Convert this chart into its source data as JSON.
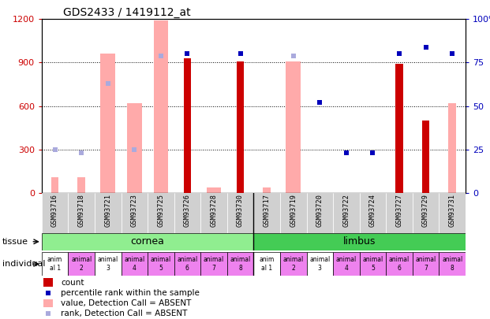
{
  "title": "GDS2433 / 1419112_at",
  "samples": [
    "GSM93716",
    "GSM93718",
    "GSM93721",
    "GSM93723",
    "GSM93725",
    "GSM93726",
    "GSM93728",
    "GSM93730",
    "GSM93717",
    "GSM93719",
    "GSM93720",
    "GSM93722",
    "GSM93724",
    "GSM93727",
    "GSM93729",
    "GSM93731"
  ],
  "count_values": [
    null,
    null,
    null,
    null,
    null,
    930,
    null,
    910,
    null,
    null,
    null,
    null,
    null,
    890,
    500,
    null
  ],
  "count_absent": [
    110,
    110,
    null,
    null,
    null,
    null,
    40,
    null,
    40,
    null,
    null,
    null,
    null,
    null,
    null,
    620
  ],
  "rank_present": [
    null,
    null,
    null,
    null,
    null,
    80,
    null,
    80,
    null,
    null,
    null,
    null,
    null,
    80,
    null,
    null
  ],
  "rank_absent": [
    25,
    23,
    null,
    null,
    null,
    null,
    null,
    null,
    null,
    null,
    null,
    null,
    null,
    null,
    null,
    null
  ],
  "value_absent": [
    null,
    null,
    960,
    620,
    1190,
    null,
    40,
    null,
    null,
    910,
    null,
    null,
    null,
    null,
    null,
    null
  ],
  "rank_absent_scatter": [
    null,
    null,
    63,
    25,
    79,
    null,
    null,
    null,
    null,
    79,
    null,
    null,
    null,
    null,
    null,
    null
  ],
  "rank_present_scatter": [
    null,
    null,
    null,
    null,
    null,
    null,
    null,
    null,
    null,
    null,
    52,
    23,
    23,
    null,
    84,
    80
  ],
  "value_absent2": [
    null,
    null,
    null,
    null,
    null,
    null,
    null,
    null,
    null,
    null,
    null,
    null,
    null,
    null,
    null,
    null
  ],
  "tissue_groups": [
    {
      "label": "cornea",
      "start": 0,
      "end": 8,
      "color": "#90EE90"
    },
    {
      "label": "limbus",
      "start": 8,
      "end": 16,
      "color": "#44CC55"
    }
  ],
  "individual_labels": [
    "anim\nal 1",
    "animal\n2",
    "animal\n3",
    "animal\n4",
    "animal\n5",
    "animal\n6",
    "animal\n7",
    "animal\n8",
    "anim\nal 1",
    "animal\n2",
    "animal\n3",
    "animal\n4",
    "animal\n5",
    "animal\n6",
    "animal\n7",
    "animal\n8"
  ],
  "individual_colors": [
    "#ffffff",
    "#ee82ee",
    "#ffffff",
    "#ee82ee",
    "#ee82ee",
    "#ee82ee",
    "#ee82ee",
    "#ee82ee",
    "#ffffff",
    "#ee82ee",
    "#ffffff",
    "#ee82ee",
    "#ee82ee",
    "#ee82ee",
    "#ee82ee",
    "#ee82ee"
  ],
  "ylim_left": [
    0,
    1200
  ],
  "ylim_right": [
    0,
    100
  ],
  "yticks_left": [
    0,
    300,
    600,
    900,
    1200
  ],
  "yticks_right": [
    0,
    25,
    50,
    75,
    100
  ],
  "color_count": "#cc0000",
  "color_rank": "#0000bb",
  "color_value_absent": "#ffaaaa",
  "color_rank_absent": "#aaaadd",
  "bg_color": "#f0f0f0"
}
